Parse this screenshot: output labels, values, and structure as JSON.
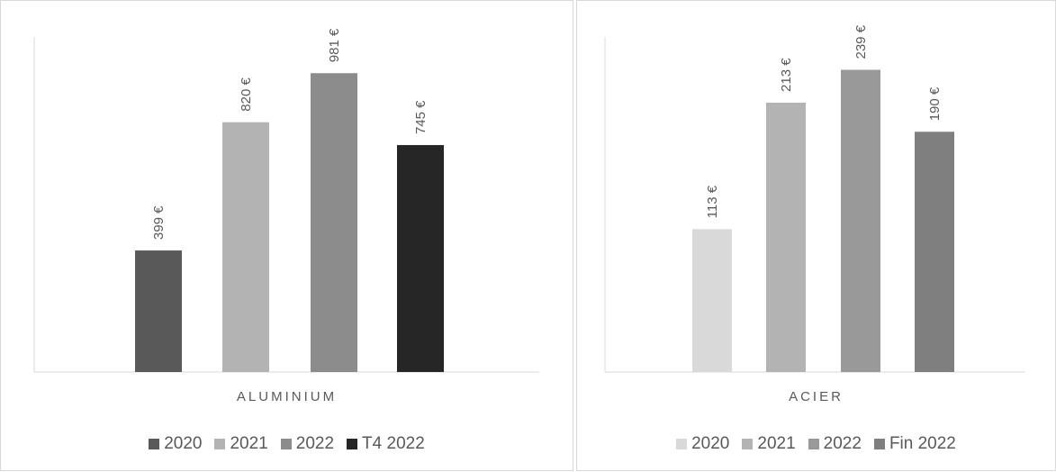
{
  "chart_data": [
    {
      "type": "bar",
      "xlabel": "ALUMINIUM",
      "categories": [
        "2020",
        "2021",
        "2022",
        "T4 2022"
      ],
      "values": [
        399,
        820,
        981,
        745
      ],
      "value_labels": [
        "399 €",
        "820 €",
        "981 €",
        "745 €"
      ],
      "ylim": [
        0,
        1100
      ],
      "grid": false,
      "legend_position": "bottom",
      "series": [
        {
          "name": "2020",
          "value": 399,
          "color": "#595959"
        },
        {
          "name": "2021",
          "value": 820,
          "color": "#b3b3b3"
        },
        {
          "name": "2022",
          "value": 981,
          "color": "#8c8c8c"
        },
        {
          "name": "T4 2022",
          "value": 745,
          "color": "#262626"
        }
      ]
    },
    {
      "type": "bar",
      "xlabel": "ACIER",
      "categories": [
        "2020",
        "2021",
        "2022",
        "Fin 2022"
      ],
      "values": [
        113,
        213,
        239,
        190
      ],
      "value_labels": [
        "113 €",
        "213 €",
        "239 €",
        "190 €"
      ],
      "ylim": [
        0,
        265
      ],
      "grid": false,
      "legend_position": "bottom",
      "series": [
        {
          "name": "2020",
          "value": 113,
          "color": "#d9d9d9"
        },
        {
          "name": "2021",
          "value": 213,
          "color": "#b3b3b3"
        },
        {
          "name": "2022",
          "value": 239,
          "color": "#999999"
        },
        {
          "name": "Fin 2022",
          "value": 190,
          "color": "#7f7f7f"
        }
      ]
    }
  ]
}
